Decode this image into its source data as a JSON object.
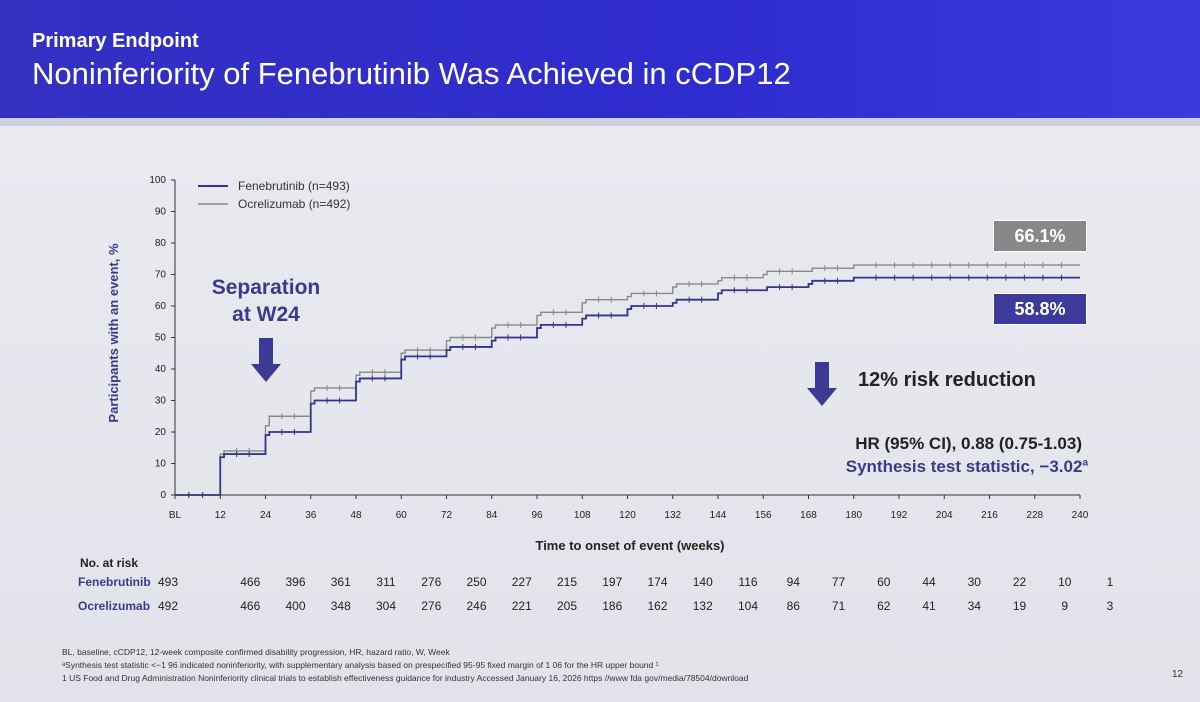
{
  "header": {
    "kicker": "Primary Endpoint",
    "title": "Noninferiority of Fenebrutinib Was Achieved in cCDP12"
  },
  "colors": {
    "fenebrutinib": "#35338a",
    "ocrelizumab": "#8a8789",
    "header": "#3330c2"
  },
  "annotations": {
    "separation_line1": "Separation",
    "separation_line2": "at W24",
    "risk_reduction": "12% risk reduction",
    "hr": "HR (95% CI), 0.88 (0.75-1.03)",
    "synthesis": "Synthesis test statistic, −3.02",
    "synthesis_sup": "a",
    "badge_ocrelizumab": "66.1%",
    "badge_fenebrutinib": "58.8%"
  },
  "chart_data": {
    "type": "line",
    "xlabel": "Time to onset of event (weeks)",
    "ylabel": "Participants with an event, %",
    "x_ticks": [
      "BL",
      "12",
      "24",
      "36",
      "48",
      "60",
      "72",
      "84",
      "96",
      "108",
      "120",
      "132",
      "144",
      "156",
      "168",
      "180",
      "192",
      "204",
      "216",
      "228",
      "240"
    ],
    "xlim": [
      0,
      240
    ],
    "ylim": [
      0,
      100
    ],
    "y_ticks": [
      0,
      10,
      20,
      30,
      40,
      50,
      60,
      70,
      80,
      90,
      100
    ],
    "legend_position": "top-left",
    "series": [
      {
        "name": "Fenebrutinib (n=493)",
        "color": "#35338a",
        "x": [
          0,
          11,
          12,
          13,
          23,
          24,
          25,
          35,
          36,
          37,
          47,
          48,
          49,
          59,
          60,
          61,
          71,
          72,
          73,
          83,
          84,
          85,
          95,
          96,
          97,
          107,
          108,
          109,
          119,
          120,
          121,
          131,
          132,
          133,
          143,
          144,
          145,
          155,
          156,
          157,
          167,
          168,
          169,
          179,
          180,
          181,
          240
        ],
        "y": [
          0,
          0,
          12,
          13,
          13,
          19,
          20,
          20,
          29,
          30,
          30,
          36,
          37,
          37,
          43,
          44,
          44,
          46,
          47,
          47,
          49,
          50,
          50,
          53,
          54,
          54,
          56,
          57,
          57,
          59,
          60,
          60,
          61,
          62,
          62,
          64,
          65,
          65,
          65,
          66,
          66,
          67,
          68,
          68,
          69,
          69,
          69
        ]
      },
      {
        "name": "Ocrelizumab (n=492)",
        "color": "#8a8789",
        "x": [
          0,
          11,
          12,
          13,
          23,
          24,
          25,
          35,
          36,
          37,
          47,
          48,
          49,
          59,
          60,
          61,
          71,
          72,
          73,
          83,
          84,
          85,
          95,
          96,
          97,
          107,
          108,
          109,
          119,
          120,
          121,
          131,
          132,
          133,
          143,
          144,
          145,
          155,
          156,
          157,
          167,
          168,
          169,
          179,
          180,
          181,
          240
        ],
        "y": [
          0,
          0,
          13,
          14,
          14,
          22,
          25,
          25,
          33,
          34,
          34,
          38,
          39,
          39,
          45,
          46,
          46,
          49,
          50,
          50,
          53,
          54,
          54,
          57,
          58,
          58,
          61,
          62,
          62,
          63,
          64,
          64,
          66,
          67,
          67,
          68,
          69,
          69,
          70,
          71,
          71,
          71,
          72,
          72,
          73,
          73,
          73
        ]
      }
    ]
  },
  "risk_table": {
    "title": "No. at risk",
    "rows": [
      {
        "label": "Fenebrutinib",
        "values": [
          "493",
          "466",
          "396",
          "361",
          "311",
          "276",
          "250",
          "227",
          "215",
          "197",
          "174",
          "140",
          "116",
          "94",
          "77",
          "60",
          "44",
          "30",
          "22",
          "10",
          "1"
        ]
      },
      {
        "label": "Ocrelizumab",
        "values": [
          "492",
          "466",
          "400",
          "348",
          "304",
          "276",
          "246",
          "221",
          "205",
          "186",
          "162",
          "132",
          "104",
          "86",
          "71",
          "62",
          "41",
          "34",
          "19",
          "9",
          "3"
        ]
      }
    ]
  },
  "footnotes": {
    "line1": "BL, baseline, cCDP12, 12-week composite confirmed disability progression, HR, hazard ratio, W, Week",
    "line2": "ᵃSynthesis test statistic <−1 96 indicated noninferiority, with supplementary analysis based on prespecified 95-95 fixed margin of 1 06 for the HR upper bound ¹",
    "line3": "1  US Food and Drug Administration  Noninferiority clinical trials to establish effectiveness  guidance for industry  Accessed January 16, 2026  https //www fda gov/media/78504/download",
    "page": "12"
  }
}
